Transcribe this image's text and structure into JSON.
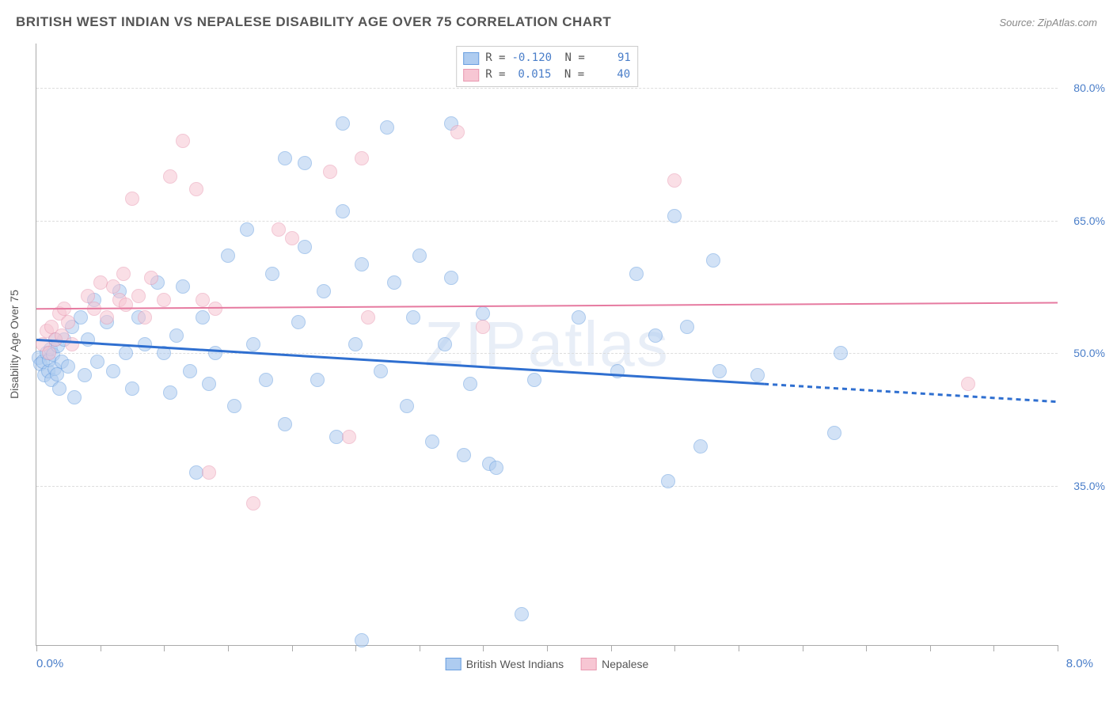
{
  "title": "BRITISH WEST INDIAN VS NEPALESE DISABILITY AGE OVER 75 CORRELATION CHART",
  "source": "Source: ZipAtlas.com",
  "watermark": "ZIPatlas",
  "yaxis_title": "Disability Age Over 75",
  "chart": {
    "type": "scatter",
    "xlim": [
      0.0,
      8.0
    ],
    "ylim": [
      17.0,
      85.0
    ],
    "xaxis_labels": {
      "left": "0.0%",
      "right": "8.0%"
    },
    "yticks": [
      35.0,
      50.0,
      65.0,
      80.0
    ],
    "ytick_labels": [
      "35.0%",
      "50.0%",
      "65.0%",
      "80.0%"
    ],
    "xtick_positions": [
      0.0,
      0.5,
      1.0,
      1.5,
      2.0,
      2.5,
      3.0,
      3.5,
      4.0,
      4.5,
      5.0,
      5.5,
      6.0,
      6.5,
      7.0,
      7.5,
      8.0
    ],
    "point_radius": 8,
    "point_opacity": 0.55,
    "grid_color": "#dddddd",
    "background_color": "#ffffff"
  },
  "series": [
    {
      "name": "British West Indians",
      "fill": "#aeccf0",
      "stroke": "#6a9fe0",
      "R": "-0.120",
      "N": "91",
      "trend": {
        "y_at_xmin": 51.5,
        "y_at_xmax": 44.5,
        "solid_until_x": 5.7,
        "color": "#2f6fd0",
        "width": 3
      },
      "points": [
        [
          0.02,
          49.5
        ],
        [
          0.03,
          48.8
        ],
        [
          0.05,
          49.0
        ],
        [
          0.06,
          47.5
        ],
        [
          0.08,
          50.0
        ],
        [
          0.09,
          48.0
        ],
        [
          0.1,
          49.2
        ],
        [
          0.11,
          50.5
        ],
        [
          0.12,
          47.0
        ],
        [
          0.13,
          49.8
        ],
        [
          0.14,
          48.2
        ],
        [
          0.15,
          51.5
        ],
        [
          0.16,
          47.6
        ],
        [
          0.17,
          50.8
        ],
        [
          0.18,
          46.0
        ],
        [
          0.2,
          49.0
        ],
        [
          0.22,
          51.5
        ],
        [
          0.25,
          48.5
        ],
        [
          0.28,
          53.0
        ],
        [
          0.3,
          45.0
        ],
        [
          0.35,
          54.0
        ],
        [
          0.38,
          47.5
        ],
        [
          0.4,
          51.5
        ],
        [
          0.45,
          56.0
        ],
        [
          0.48,
          49.0
        ],
        [
          0.55,
          53.5
        ],
        [
          0.6,
          48.0
        ],
        [
          0.65,
          57.0
        ],
        [
          0.7,
          50.0
        ],
        [
          0.75,
          46.0
        ],
        [
          0.8,
          54.0
        ],
        [
          0.85,
          51.0
        ],
        [
          0.95,
          58.0
        ],
        [
          1.0,
          50.0
        ],
        [
          1.05,
          45.5
        ],
        [
          1.1,
          52.0
        ],
        [
          1.15,
          57.5
        ],
        [
          1.2,
          48.0
        ],
        [
          1.25,
          36.5
        ],
        [
          1.3,
          54.0
        ],
        [
          1.35,
          46.5
        ],
        [
          1.4,
          50.0
        ],
        [
          1.5,
          61.0
        ],
        [
          1.55,
          44.0
        ],
        [
          1.65,
          64.0
        ],
        [
          1.7,
          51.0
        ],
        [
          1.8,
          47.0
        ],
        [
          1.85,
          59.0
        ],
        [
          1.95,
          42.0
        ],
        [
          1.95,
          72.0
        ],
        [
          2.05,
          53.5
        ],
        [
          2.1,
          62.0
        ],
        [
          2.1,
          71.5
        ],
        [
          2.2,
          47.0
        ],
        [
          2.25,
          57.0
        ],
        [
          2.35,
          40.5
        ],
        [
          2.4,
          66.0
        ],
        [
          2.4,
          76.0
        ],
        [
          2.5,
          51.0
        ],
        [
          2.55,
          60.0
        ],
        [
          2.55,
          17.5
        ],
        [
          2.7,
          48.0
        ],
        [
          2.75,
          75.5
        ],
        [
          2.8,
          58.0
        ],
        [
          2.9,
          44.0
        ],
        [
          2.95,
          54.0
        ],
        [
          3.0,
          61.0
        ],
        [
          3.1,
          40.0
        ],
        [
          3.2,
          51.0
        ],
        [
          3.25,
          58.5
        ],
        [
          3.25,
          76.0
        ],
        [
          3.35,
          38.5
        ],
        [
          3.4,
          46.5
        ],
        [
          3.5,
          54.5
        ],
        [
          3.55,
          37.5
        ],
        [
          3.6,
          37.0
        ],
        [
          3.8,
          20.5
        ],
        [
          3.9,
          47.0
        ],
        [
          4.25,
          54.0
        ],
        [
          4.55,
          48.0
        ],
        [
          4.7,
          59.0
        ],
        [
          4.85,
          52.0
        ],
        [
          4.95,
          35.5
        ],
        [
          5.0,
          65.5
        ],
        [
          5.1,
          53.0
        ],
        [
          5.2,
          39.5
        ],
        [
          5.3,
          60.5
        ],
        [
          5.35,
          48.0
        ],
        [
          5.65,
          47.5
        ],
        [
          6.25,
          41.0
        ],
        [
          6.3,
          50.0
        ]
      ]
    },
    {
      "name": "Nepalese",
      "fill": "#f7c6d3",
      "stroke": "#e99ab2",
      "R": "0.015",
      "N": "40",
      "trend": {
        "y_at_xmin": 55.0,
        "y_at_xmax": 55.7,
        "solid_until_x": 8.0,
        "color": "#e67aa0",
        "width": 2
      },
      "points": [
        [
          0.05,
          51.0
        ],
        [
          0.08,
          52.5
        ],
        [
          0.1,
          50.0
        ],
        [
          0.12,
          53.0
        ],
        [
          0.15,
          51.5
        ],
        [
          0.18,
          54.5
        ],
        [
          0.2,
          52.0
        ],
        [
          0.22,
          55.0
        ],
        [
          0.25,
          53.5
        ],
        [
          0.28,
          51.0
        ],
        [
          0.4,
          56.5
        ],
        [
          0.45,
          55.0
        ],
        [
          0.5,
          58.0
        ],
        [
          0.55,
          54.0
        ],
        [
          0.6,
          57.5
        ],
        [
          0.65,
          56.0
        ],
        [
          0.68,
          59.0
        ],
        [
          0.7,
          55.5
        ],
        [
          0.75,
          67.5
        ],
        [
          0.8,
          56.5
        ],
        [
          0.85,
          54.0
        ],
        [
          0.9,
          58.5
        ],
        [
          1.0,
          56.0
        ],
        [
          1.05,
          70.0
        ],
        [
          1.15,
          74.0
        ],
        [
          1.25,
          68.5
        ],
        [
          1.3,
          56.0
        ],
        [
          1.35,
          36.5
        ],
        [
          1.4,
          55.0
        ],
        [
          1.7,
          33.0
        ],
        [
          1.9,
          64.0
        ],
        [
          2.0,
          63.0
        ],
        [
          2.3,
          70.5
        ],
        [
          2.45,
          40.5
        ],
        [
          2.55,
          72.0
        ],
        [
          2.6,
          54.0
        ],
        [
          3.3,
          75.0
        ],
        [
          3.5,
          53.0
        ],
        [
          5.0,
          69.5
        ],
        [
          7.3,
          46.5
        ]
      ]
    }
  ]
}
